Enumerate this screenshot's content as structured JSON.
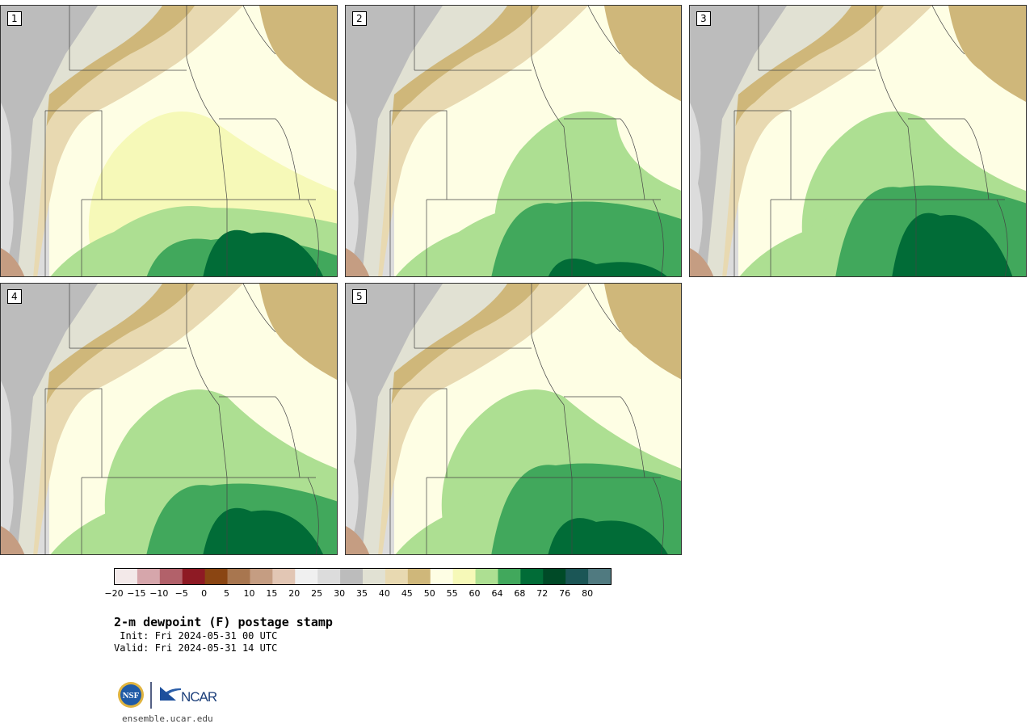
{
  "panels": [
    {
      "label": "1"
    },
    {
      "label": "2"
    },
    {
      "label": "3"
    },
    {
      "label": "4"
    },
    {
      "label": "5"
    }
  ],
  "colorbar": {
    "colors": [
      "#f3e9e9",
      "#d6a6ab",
      "#b2616a",
      "#8e1a24",
      "#8a4512",
      "#a8764f",
      "#c59d82",
      "#e2c6b4",
      "#f0f0f0",
      "#dcdcdc",
      "#bcbcbc",
      "#e1e1d3",
      "#e8d9b1",
      "#cfb77a",
      "#fefee4",
      "#f6f9b8",
      "#addf92",
      "#41a85c",
      "#016c37",
      "#004a27",
      "#1b5656",
      "#507a80"
    ],
    "ticks": [
      "−20",
      "−15",
      "−10",
      "−5",
      "0",
      "5",
      "10",
      "15",
      "20",
      "25",
      "30",
      "35",
      "40",
      "45",
      "50",
      "55",
      "60",
      "64",
      "68",
      "72",
      "76",
      "80"
    ]
  },
  "title": "2-m dewpoint (F) postage stamp",
  "init": " Init: Fri 2024-05-31 00 UTC",
  "valid": "Valid: Fri 2024-05-31 14 UTC",
  "logos": {
    "nsf": "NSF",
    "ncar": "NCAR"
  },
  "site": "ensemble.ucar.edu"
}
